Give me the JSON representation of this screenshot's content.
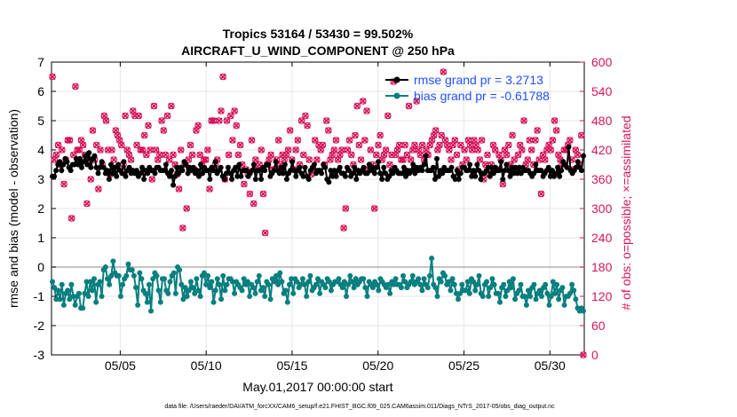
{
  "chart_data": {
    "type": "line",
    "title_line1": "Tropics 53164 / 53430 = 99.502%",
    "title_line2": "AIRCRAFT_U_WIND_COMPONENT @ 250 hPa",
    "xlabel": "May.01,2017 00:00:00 start",
    "ylabel_left": "rmse and bias (model - observation)",
    "ylabel_right": "# of obs: o=possible; ×=assimilated",
    "footnote": "data file: /Users/raeder/DAI/ATM_forcXX/CAM6_setup/f.e21.FHIST_BGC.f09_025.CAM6assim.011/Diags_NTrS_2017-05/obs_diag_output.nc",
    "x_ticks": [
      {
        "label": "05/05",
        "day": 5
      },
      {
        "label": "05/10",
        "day": 10
      },
      {
        "label": "05/15",
        "day": 15
      },
      {
        "label": "05/20",
        "day": 20
      },
      {
        "label": "05/25",
        "day": 25
      },
      {
        "label": "05/30",
        "day": 30
      }
    ],
    "xlim": [
      1,
      32
    ],
    "ylim_left": [
      -3,
      7
    ],
    "yticks_left": [
      "-3",
      "-2",
      "-1",
      "0",
      "1",
      "2",
      "3",
      "4",
      "5",
      "6",
      "7"
    ],
    "ylim_right": [
      0,
      600
    ],
    "yticks_right": [
      "0",
      "60",
      "120",
      "180",
      "240",
      "300",
      "360",
      "420",
      "480",
      "540",
      "600"
    ],
    "colors": {
      "rmse": "#000000",
      "bias": "#0a7f7f",
      "obs": "#d6145a",
      "legend_text": "#1f4fff",
      "zero_line": "#b0b0b0",
      "grid": "#e6e6e6"
    },
    "series": [
      {
        "name": "rmse grand pr = 3.2713",
        "axis": "left",
        "values": [
          3.1,
          3.1,
          3.3,
          3.5,
          3.6,
          3.3,
          3.5,
          3.7,
          3.6,
          3.4,
          3.3,
          3.5,
          3.5,
          3.7,
          3.5,
          3.7,
          3.4,
          3.6,
          3.8,
          3.5,
          3.9,
          3.4,
          3.7,
          3.8,
          3.4,
          3.2,
          3.4,
          3.6,
          3.4,
          3.2,
          3.3,
          3.0,
          3.5,
          3.2,
          3.4,
          3.1,
          3.5,
          3.3,
          3.2,
          3.6,
          3.1,
          3.3,
          3.4,
          3.2,
          3.3,
          3.2,
          3.3,
          3.1,
          3.2,
          3.4,
          3.0,
          3.3,
          3.2,
          3.4,
          3.3,
          3.3,
          3.2,
          3.4,
          3.4,
          3.3,
          3.3,
          3.3,
          3.5,
          3.2,
          3.1,
          3.3,
          2.8,
          3.1,
          3.4,
          3.2,
          3.4,
          3.3,
          3.6,
          3.5,
          3.2,
          3.4,
          3.3,
          3.4,
          3.2,
          3.3,
          3.1,
          3.5,
          3.2,
          3.4,
          3.3,
          3.3,
          3.0,
          3.4,
          3.3,
          3.6,
          3.2,
          3.3,
          3.4,
          3.1,
          3.0,
          3.2,
          3.4,
          3.2,
          3.0,
          3.3,
          3.4,
          3.1,
          3.5,
          3.1,
          3.3,
          3.3,
          3.3,
          3.1,
          3.2,
          3.3,
          3.5,
          3.0,
          3.3,
          3.3,
          3.0,
          3.4,
          3.3,
          3.5,
          3.5,
          3.1,
          3.2,
          3.3,
          3.6,
          3.3,
          3.2,
          3.4,
          3.2,
          3.5,
          3.0,
          3.2,
          3.3,
          3.6,
          3.3,
          3.1,
          3.3,
          3.4,
          3.2,
          3.1,
          3.4,
          3.1,
          3.0,
          3.3,
          3.4,
          3.5,
          3.2,
          3.3,
          3.3,
          3.2,
          3.5,
          3.4,
          3.0,
          2.9,
          3.3,
          3.1,
          3.3,
          3.1,
          3.3,
          3.4,
          3.2,
          3.2,
          3.1,
          3.4,
          3.3,
          3.1,
          3.2,
          3.4,
          3.0,
          3.3,
          3.2,
          3.3,
          3.4,
          3.2,
          3.2,
          3.5,
          3.3,
          3.4,
          3.2,
          3.4,
          3.6,
          3.2,
          3.0,
          3.4,
          3.2,
          3.0,
          3.1,
          3.3,
          3.2,
          3.4,
          3.3,
          3.2,
          3.2,
          3.2,
          3.4,
          3.1,
          3.3,
          3.2,
          3.3,
          3.5,
          3.2,
          3.4,
          3.3,
          3.4,
          3.3,
          3.5,
          3.8,
          3.3,
          3.3,
          3.3,
          3.4,
          3.0,
          3.7,
          3.1,
          3.3,
          3.2,
          3.4,
          3.3,
          3.3,
          3.3,
          3.4,
          3.1,
          3.0,
          3.3,
          3.0,
          3.2,
          3.4,
          3.4,
          3.3,
          3.3,
          3.5,
          3.1,
          3.3,
          3.1,
          3.5,
          3.3,
          3.0,
          3.2,
          3.2,
          3.3,
          3.4,
          3.1,
          3.4,
          3.2,
          3.4,
          3.3,
          3.3,
          3.6,
          3.0,
          3.3,
          3.5,
          3.3,
          3.1,
          3.4,
          3.2,
          3.4,
          3.2,
          3.4,
          3.2,
          3.4,
          3.3,
          3.3,
          3.3,
          3.2,
          3.1,
          3.2,
          3.5,
          3.3,
          3.3,
          3.3,
          3.1,
          3.2,
          3.3,
          3.4,
          3.1,
          3.3,
          3.1,
          3.2,
          3.4,
          3.1,
          3.3,
          3.6,
          3.5,
          3.4,
          4.1,
          3.3,
          3.2,
          3.3,
          3.4,
          3.6,
          3.4,
          3.3,
          3.8
        ]
      },
      {
        "name": "bias grand pr = -0.61788",
        "axis": "left",
        "values": [
          -0.5,
          -0.7,
          -1.1,
          -0.8,
          -1.1,
          -0.6,
          -1.3,
          -0.9,
          -0.8,
          -1.1,
          -0.6,
          -1.0,
          -1.3,
          -1.0,
          -0.9,
          -1.4,
          -1.4,
          -0.9,
          -0.5,
          -1.0,
          -0.5,
          -0.8,
          -0.4,
          -1.2,
          -0.6,
          -0.5,
          -1.0,
          -0.1,
          0.0,
          -0.4,
          -0.6,
          -0.3,
          0.2,
          -0.2,
          -0.3,
          -0.3,
          -1.0,
          -0.6,
          -0.4,
          -0.3,
          0.1,
          -0.1,
          -0.1,
          -0.3,
          -0.7,
          -1.3,
          -0.2,
          -0.4,
          -0.8,
          -0.9,
          -1.2,
          -0.6,
          -1.5,
          -0.4,
          -0.2,
          -0.3,
          -0.8,
          -1.2,
          -0.4,
          -0.4,
          -0.8,
          -0.9,
          -0.5,
          -0.3,
          -0.2,
          -0.9,
          0.0,
          -0.1,
          -0.6,
          -1.1,
          -0.7,
          -1.0,
          -0.8,
          -0.5,
          -0.7,
          -0.9,
          -0.4,
          -0.8,
          -1.0,
          -0.3,
          -0.2,
          -0.6,
          -0.3,
          -0.7,
          -0.5,
          -1.2,
          -0.8,
          -0.4,
          -0.6,
          -1.1,
          -0.3,
          -0.8,
          -0.6,
          -0.4,
          -0.4,
          -0.5,
          -0.9,
          -0.5,
          -0.6,
          -0.7,
          -0.8,
          -0.4,
          -0.6,
          -0.5,
          -1.0,
          -0.6,
          -0.7,
          -0.9,
          -0.5,
          -0.3,
          -0.8,
          -0.7,
          -1.0,
          -0.5,
          -0.6,
          -1.1,
          -0.4,
          -0.5,
          -0.3,
          -0.6,
          -0.2,
          -0.5,
          -0.9,
          -0.8,
          -1.2,
          -0.6,
          -0.4,
          -0.9,
          -0.4,
          -0.5,
          -0.7,
          -0.6,
          -0.4,
          -0.6,
          -1.0,
          -0.5,
          -0.3,
          -0.8,
          -0.7,
          -0.6,
          -0.4,
          -0.9,
          -0.5,
          -0.6,
          -0.7,
          -0.4,
          -0.5,
          -0.8,
          -0.6,
          -0.5,
          -0.5,
          -0.4,
          -0.6,
          -0.7,
          -0.5,
          -1.0,
          -0.6,
          -0.3,
          -0.5,
          -0.7,
          -0.4,
          -0.6,
          -0.5,
          -0.4,
          -0.4,
          -0.7,
          -1.0,
          -0.5,
          -0.6,
          -0.7,
          -0.5,
          -0.6,
          -0.8,
          -0.4,
          -0.5,
          -0.6,
          -0.7,
          -0.6,
          -0.9,
          -0.5,
          -0.6,
          -0.4,
          -0.6,
          -0.6,
          -0.7,
          -0.3,
          -0.5,
          -0.7,
          -0.6,
          -0.5,
          -0.3,
          -0.6,
          -0.5,
          -0.4,
          -0.6,
          -0.8,
          -0.4,
          -0.6,
          -0.7,
          -0.3,
          0.3,
          -0.6,
          -0.7,
          -1.0,
          -0.4,
          -0.5,
          -0.2,
          -0.3,
          -0.6,
          -0.5,
          -0.8,
          -0.4,
          -0.6,
          -0.9,
          -1.1,
          -0.9,
          -0.6,
          -0.8,
          -0.8,
          -0.5,
          -0.9,
          -0.4,
          -0.5,
          -0.8,
          -0.6,
          -0.3,
          -0.9,
          -1.0,
          -0.6,
          -0.5,
          -1.0,
          -0.7,
          -0.4,
          -0.6,
          -0.9,
          -0.9,
          -1.2,
          -0.7,
          -0.6,
          -1.0,
          -0.8,
          -0.5,
          -0.7,
          -0.4,
          -1.1,
          -0.9,
          -0.8,
          -0.6,
          -1.0,
          -1.0,
          -1.3,
          -0.8,
          -1.0,
          -0.7,
          -0.6,
          -1.1,
          -0.9,
          -0.8,
          -1.0,
          -0.7,
          -0.6,
          -0.9,
          -1.3,
          -1.0,
          -0.5,
          -0.9,
          -0.6,
          -1.1,
          -0.8,
          -0.7,
          -1.3,
          -1.0,
          -1.0,
          -0.9,
          -0.6,
          -0.8,
          -1.1,
          -1.4,
          -1.5,
          -1.4,
          -1.5
        ]
      }
    ],
    "obs_possible": [
      570,
      400,
      410,
      430,
      390,
      420,
      350,
      400,
      440,
      440,
      280,
      410,
      550,
      420,
      420,
      440,
      430,
      410,
      310,
      400,
      360,
      460,
      400,
      430,
      340,
      420,
      390,
      490,
      480,
      420,
      370,
      420,
      400,
      460,
      450,
      440,
      430,
      390,
      490,
      420,
      410,
      400,
      500,
      490,
      430,
      490,
      420,
      420,
      450,
      410,
      470,
      420,
      360,
      510,
      420,
      400,
      410,
      480,
      460,
      410,
      490,
      400,
      510,
      410,
      390,
      370,
      340,
      420,
      260,
      390,
      300,
      400,
      430,
      410,
      380,
      460,
      470,
      410,
      390,
      400,
      400,
      420,
      340,
      480,
      480,
      390,
      400,
      480,
      500,
      570,
      360,
      480,
      410,
      490,
      440,
      500,
      470,
      410,
      430,
      390,
      350,
      380,
      370,
      330,
      440,
      310,
      400,
      380,
      390,
      420,
      330,
      250,
      390,
      400,
      410,
      380,
      380,
      400,
      440,
      390,
      410,
      400,
      410,
      420,
      460,
      400,
      380,
      420,
      440,
      390,
      480,
      410,
      490,
      470,
      400,
      370,
      380,
      440,
      400,
      430,
      420,
      430,
      390,
      480,
      460,
      400,
      410,
      420,
      440,
      400,
      410,
      420,
      260,
      300,
      420,
      440,
      410,
      390,
      450,
      510,
      430,
      400,
      520,
      440,
      500,
      380,
      420,
      390,
      300,
      410,
      430,
      450,
      400,
      410,
      420,
      490,
      390,
      410,
      560,
      410,
      420,
      430,
      400,
      400,
      430,
      410,
      510,
      400,
      420,
      430,
      520,
      420,
      410,
      430,
      400,
      420,
      410,
      430,
      440,
      450,
      460,
      420,
      430,
      450,
      580,
      440,
      430,
      420,
      400,
      430,
      440,
      410,
      380,
      430,
      390,
      420,
      400,
      440,
      430,
      420,
      440,
      430,
      420,
      400,
      440,
      360,
      390,
      410,
      370,
      390,
      430,
      420,
      380,
      410,
      400,
      350,
      420,
      410,
      430,
      390,
      450,
      400,
      380,
      410,
      430,
      420,
      480,
      390,
      400,
      440,
      420,
      390,
      440,
      460,
      400,
      330,
      410,
      400,
      420,
      430,
      420,
      440,
      480,
      460,
      410,
      400,
      390,
      420,
      420,
      430,
      440,
      400,
      380,
      420,
      410,
      390,
      450,
      0
    ]
  }
}
